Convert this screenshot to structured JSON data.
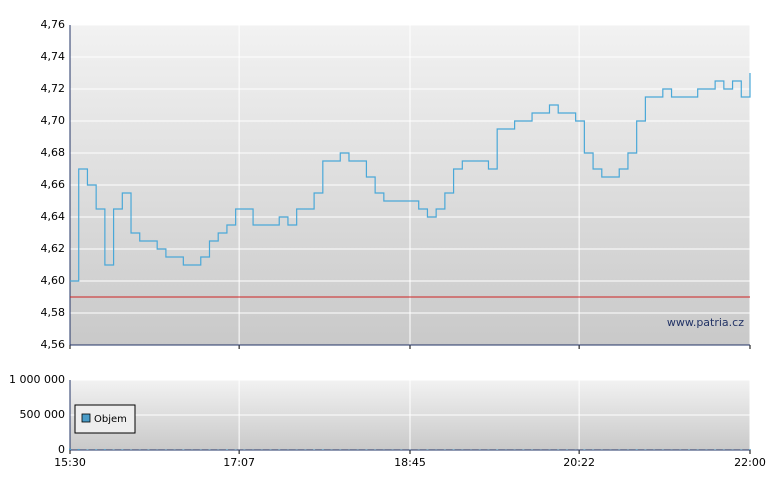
{
  "chart_data": [
    {
      "type": "line",
      "x": [
        "15:30",
        "15:35",
        "15:40",
        "15:45",
        "15:50",
        "15:55",
        "16:00",
        "16:05",
        "16:10",
        "16:15",
        "16:20",
        "16:25",
        "16:30",
        "16:35",
        "16:40",
        "16:45",
        "16:50",
        "16:55",
        "17:00",
        "17:05",
        "17:10",
        "17:15",
        "17:20",
        "17:25",
        "17:30",
        "17:35",
        "17:40",
        "17:45",
        "17:50",
        "17:55",
        "18:00",
        "18:05",
        "18:10",
        "18:15",
        "18:20",
        "18:25",
        "18:30",
        "18:35",
        "18:40",
        "18:45",
        "18:50",
        "18:55",
        "19:00",
        "19:05",
        "19:10",
        "19:15",
        "19:20",
        "19:25",
        "19:30",
        "19:35",
        "19:40",
        "19:45",
        "19:50",
        "19:55",
        "20:00",
        "20:05",
        "20:10",
        "20:15",
        "20:20",
        "20:25",
        "20:30",
        "20:35",
        "20:40",
        "20:45",
        "20:50",
        "20:55",
        "21:00",
        "21:05",
        "21:10",
        "21:15",
        "21:20",
        "21:25",
        "21:30",
        "21:35",
        "21:40",
        "21:45",
        "21:50",
        "21:55",
        "22:00"
      ],
      "series": [
        {
          "color": "#4aa8d8",
          "values": [
            4.6,
            4.67,
            4.66,
            4.645,
            4.61,
            4.645,
            4.655,
            4.63,
            4.625,
            4.625,
            4.62,
            4.615,
            4.615,
            4.61,
            4.61,
            4.615,
            4.625,
            4.63,
            4.635,
            4.645,
            4.645,
            4.635,
            4.635,
            4.635,
            4.64,
            4.635,
            4.645,
            4.645,
            4.655,
            4.675,
            4.675,
            4.68,
            4.675,
            4.675,
            4.665,
            4.655,
            4.65,
            4.65,
            4.65,
            4.65,
            4.645,
            4.64,
            4.645,
            4.655,
            4.67,
            4.675,
            4.675,
            4.675,
            4.67,
            4.695,
            4.695,
            4.7,
            4.7,
            4.705,
            4.705,
            4.71,
            4.705,
            4.705,
            4.7,
            4.68,
            4.67,
            4.665,
            4.665,
            4.67,
            4.68,
            4.7,
            4.715,
            4.715,
            4.72,
            4.715,
            4.715,
            4.715,
            4.72,
            4.72,
            4.725,
            4.72,
            4.725,
            4.715,
            4.73
          ]
        }
      ],
      "hline": {
        "value": 4.59,
        "color": "#cc2222"
      },
      "annotation": "www.patria.cz",
      "xlim": [
        "15:30",
        "22:00"
      ],
      "xticks": [
        "15:30",
        "17:07",
        "18:45",
        "20:22",
        "22:00"
      ],
      "ylim": [
        4.56,
        4.76
      ],
      "yticks": [
        {
          "value": 4.56,
          "label": "4,56"
        },
        {
          "value": 4.58,
          "label": "4,58"
        },
        {
          "value": 4.6,
          "label": "4,60"
        },
        {
          "value": 4.62,
          "label": "4,62"
        },
        {
          "value": 4.64,
          "label": "4,64"
        },
        {
          "value": 4.66,
          "label": "4,66"
        },
        {
          "value": 4.68,
          "label": "4,68"
        },
        {
          "value": 4.7,
          "label": "4,70"
        },
        {
          "value": 4.72,
          "label": "4,72"
        },
        {
          "value": 4.74,
          "label": "4,74"
        },
        {
          "value": 4.76,
          "label": "4,76"
        }
      ],
      "grid": true
    },
    {
      "type": "bar",
      "x": [
        "15:30",
        "15:35",
        "15:40",
        "15:45",
        "15:50",
        "15:55",
        "16:00",
        "16:05",
        "16:10",
        "16:15",
        "16:20",
        "16:25",
        "16:30",
        "16:35",
        "16:40",
        "16:45",
        "16:50",
        "16:55",
        "17:00",
        "17:05",
        "17:10",
        "17:15",
        "17:20",
        "17:25",
        "17:30",
        "17:35",
        "17:40",
        "17:45",
        "17:50",
        "17:55",
        "18:00",
        "18:05",
        "18:10",
        "18:15",
        "18:20",
        "18:25",
        "18:30",
        "18:35",
        "18:40",
        "18:45",
        "18:50",
        "18:55",
        "19:00",
        "19:05",
        "19:10",
        "19:15",
        "19:20",
        "19:25",
        "19:30",
        "19:35",
        "19:40",
        "19:45",
        "19:50",
        "19:55",
        "20:00",
        "20:05",
        "20:10",
        "20:15",
        "20:20",
        "20:25",
        "20:30",
        "20:35",
        "20:40",
        "20:45",
        "20:50",
        "20:55",
        "21:00",
        "21:05",
        "21:10",
        "21:15",
        "21:20",
        "21:25",
        "21:30",
        "21:35",
        "21:40",
        "21:45",
        "21:50",
        "21:55",
        "22:00"
      ],
      "series": [
        {
          "name": "Objem",
          "color": "#4a9cc8",
          "values": [
            20000,
            15000,
            8000,
            10000,
            12000,
            6000,
            9000,
            5000,
            4000,
            6000,
            3000,
            5000,
            4000,
            7000,
            3000,
            5000,
            6000,
            4000,
            8000,
            6000,
            5000,
            3000,
            4000,
            5000,
            6000,
            3000,
            4000,
            5000,
            7000,
            9000,
            4000,
            5000,
            3000,
            4000,
            6000,
            5000,
            3000,
            4000,
            5000,
            3000,
            4000,
            6000,
            3000,
            5000,
            8000,
            4000,
            3000,
            5000,
            4000,
            7000,
            3000,
            4000,
            6000,
            5000,
            3000,
            4000,
            6000,
            5000,
            3000,
            8000,
            5000,
            4000,
            3000,
            5000,
            4000,
            9000,
            6000,
            4000,
            5000,
            3000,
            4000,
            6000,
            5000,
            4000,
            7000,
            5000,
            4000,
            6000,
            10000
          ]
        }
      ],
      "xlim": [
        "15:30",
        "22:00"
      ],
      "xticks": [
        "15:30",
        "17:07",
        "18:45",
        "20:22",
        "22:00"
      ],
      "ylim": [
        0,
        1000000
      ],
      "yticks": [
        0,
        {
          "value": 500000,
          "label": "500 000"
        },
        {
          "value": 1000000,
          "label": "1 000 000"
        }
      ],
      "grid": true
    }
  ]
}
